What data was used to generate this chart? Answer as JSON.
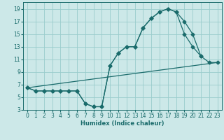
{
  "xlabel": "Humidex (Indice chaleur)",
  "bg_color": "#cce8e8",
  "grid_color": "#99cccc",
  "line_color": "#1a6b6b",
  "ylim": [
    3,
    20
  ],
  "xlim": [
    -0.5,
    23.5
  ],
  "yticks": [
    3,
    5,
    7,
    9,
    11,
    13,
    15,
    17,
    19
  ],
  "xticks": [
    0,
    1,
    2,
    3,
    4,
    5,
    6,
    7,
    8,
    9,
    10,
    11,
    12,
    13,
    14,
    15,
    16,
    17,
    18,
    19,
    20,
    21,
    22,
    23
  ],
  "line1_x": [
    0,
    1,
    2,
    3,
    4,
    5,
    6,
    7,
    8,
    9,
    10,
    11,
    12,
    13,
    14,
    15,
    16,
    17,
    18,
    19,
    20,
    21
  ],
  "line1_y": [
    6.5,
    6,
    6,
    6,
    6,
    6,
    6,
    4,
    3.5,
    3.5,
    10,
    12,
    13,
    13,
    16,
    17.5,
    18.5,
    19,
    18.5,
    17,
    15,
    11.5
  ],
  "line2_x": [
    0,
    23
  ],
  "line2_y": [
    6.5,
    10.5
  ],
  "line3_x": [
    0,
    1,
    2,
    3,
    4,
    5,
    6,
    7,
    8,
    9,
    10,
    11,
    12,
    13,
    14,
    15,
    16,
    17,
    18,
    19,
    20,
    21,
    22,
    23
  ],
  "line3_y": [
    6.5,
    6,
    6,
    6,
    6,
    6,
    6,
    4,
    3.5,
    3.5,
    10,
    12,
    13,
    13,
    16,
    17.5,
    18.5,
    19,
    18.5,
    15,
    13,
    11.5,
    10.5,
    10.5
  ],
  "marker_size": 2.5,
  "line_width": 0.9,
  "tick_labelsize": 5.5,
  "xlabel_fontsize": 6.0
}
